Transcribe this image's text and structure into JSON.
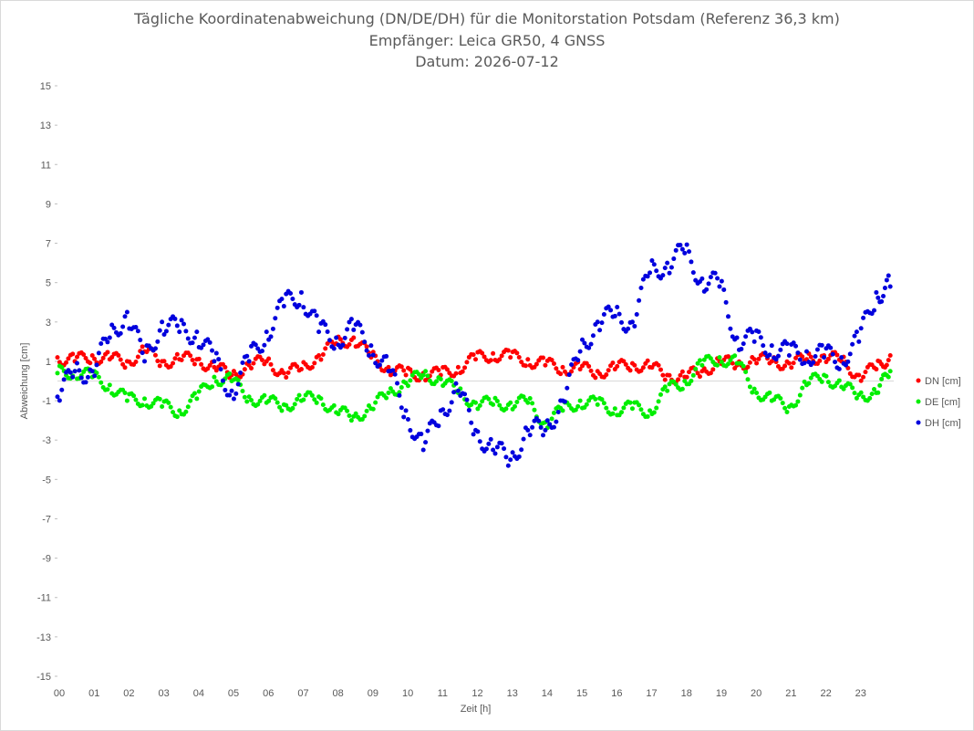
{
  "chart_data": {
    "type": "scatter",
    "title_lines": [
      "Tägliche Koordinatenabweichung (DN/DE/DH) für die Monitorstation Potsdam (Referenz 36,3 km)",
      "Empfänger: Leica GR50, 4 GNSS",
      "Datum: 2026-07-12"
    ],
    "xlabel": "Zeit [h]",
    "ylabel": "Abweichung [cm]",
    "xlim": [
      0,
      24
    ],
    "ylim": [
      -15,
      15
    ],
    "x_ticks": [
      "00",
      "01",
      "02",
      "03",
      "04",
      "05",
      "06",
      "07",
      "08",
      "09",
      "10",
      "11",
      "12",
      "13",
      "14",
      "15",
      "16",
      "17",
      "18",
      "19",
      "20",
      "21",
      "22",
      "23"
    ],
    "y_ticks": [
      15,
      13,
      11,
      9,
      7,
      5,
      3,
      1,
      -1,
      -3,
      -5,
      -7,
      -9,
      -11,
      -13,
      -15
    ],
    "grid": false,
    "legend_position": "right",
    "series": [
      {
        "name": "DN [cm]",
        "color": "#ff0000",
        "x": [
          0,
          0.5,
          1,
          1.5,
          2,
          2.5,
          3,
          3.5,
          4,
          4.5,
          5,
          5.5,
          6,
          6.5,
          7,
          7.5,
          8,
          8.5,
          9,
          9.5,
          10,
          10.5,
          11,
          11.5,
          12,
          12.5,
          13,
          13.5,
          14,
          14.5,
          15,
          15.5,
          16,
          16.5,
          17,
          17.5,
          18,
          18.5,
          19,
          19.5,
          20,
          20.5,
          21,
          21.5,
          22,
          22.5,
          23,
          23.5,
          23.9
        ],
        "y": [
          1.2,
          1.0,
          1.3,
          1.1,
          1.0,
          1.5,
          1.0,
          1.1,
          1.1,
          0.7,
          0.3,
          0.8,
          1.0,
          0.4,
          0.6,
          1.3,
          1.9,
          2.2,
          1.2,
          0.7,
          0.3,
          0.4,
          0.3,
          0.7,
          1.1,
          1.4,
          1.2,
          1.1,
          0.8,
          0.7,
          0.6,
          0.5,
          0.6,
          0.9,
          0.7,
          0.3,
          0.2,
          0.5,
          1.0,
          0.8,
          1.1,
          1.0,
          0.9,
          1.1,
          1.3,
          1.0,
          0.3,
          0.6,
          1.3
        ]
      },
      {
        "name": "DE [cm]",
        "color": "#00ee00",
        "x": [
          0,
          0.5,
          1,
          1.5,
          2,
          2.5,
          3,
          3.5,
          4,
          4.5,
          5,
          5.5,
          6,
          6.5,
          7,
          7.5,
          8,
          8.5,
          9,
          9.5,
          10,
          10.5,
          11,
          11.5,
          12,
          12.5,
          13,
          13.5,
          14,
          14.5,
          15,
          15.5,
          16,
          16.5,
          17,
          17.5,
          18,
          18.5,
          19,
          19.5,
          20,
          20.5,
          21,
          21.5,
          22,
          22.5,
          23,
          23.5,
          23.9
        ],
        "y": [
          0.4,
          0.5,
          0.2,
          -0.2,
          -1.0,
          -0.9,
          -1.3,
          -1.5,
          -0.9,
          0.2,
          0.0,
          -0.8,
          -1.1,
          -1.2,
          -1.0,
          -0.8,
          -1.6,
          -1.8,
          -1.4,
          -0.6,
          -0.1,
          0.3,
          0.1,
          -0.6,
          -1.1,
          -1.2,
          -1.1,
          -1.1,
          -2.1,
          -1.5,
          -1.0,
          -1.2,
          -1.4,
          -1.4,
          -1.5,
          -0.5,
          0.0,
          0.8,
          1.2,
          0.9,
          -0.4,
          -1.0,
          -1.3,
          -0.2,
          0.3,
          -0.3,
          -0.7,
          -0.6,
          0.5
        ]
      },
      {
        "name": "DH [cm]",
        "color": "#0000dd",
        "x": [
          0,
          0.5,
          1,
          1.5,
          2,
          2.5,
          3,
          3.5,
          4,
          4.5,
          5,
          5.5,
          6,
          6.5,
          7,
          7.5,
          8,
          8.5,
          9,
          9.5,
          10,
          10.5,
          11,
          11.5,
          12,
          12.5,
          13,
          13.5,
          14,
          14.5,
          15,
          15.5,
          16,
          16.5,
          17,
          17.5,
          18,
          18.5,
          19,
          19.5,
          20,
          20.5,
          21,
          21.5,
          22,
          22.5,
          23,
          23.5,
          23.9
        ],
        "y": [
          -0.8,
          0.5,
          0.5,
          2.2,
          3.5,
          1.0,
          3.0,
          2.5,
          2.5,
          1.0,
          -0.5,
          1.0,
          2.5,
          3.8,
          4.5,
          2.5,
          2.2,
          2.6,
          1.8,
          0.5,
          -1.5,
          -3.5,
          -1.5,
          -0.5,
          -2.5,
          -3.5,
          -4.0,
          -2.5,
          -2.5,
          -1.0,
          1.5,
          3.0,
          3.3,
          3.0,
          5.5,
          6.0,
          6.5,
          5.2,
          4.8,
          2.2,
          2.0,
          1.8,
          1.3,
          1.5,
          1.2,
          1.2,
          2.0,
          4.5,
          4.8
        ]
      }
    ]
  }
}
